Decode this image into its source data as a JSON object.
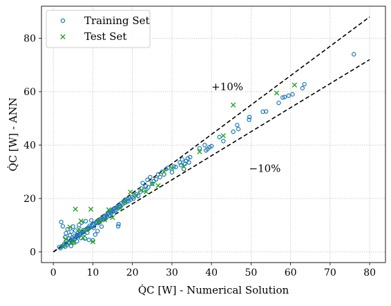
{
  "chart_data": {
    "type": "scatter",
    "xlim": [
      -3,
      84
    ],
    "ylim": [
      -4,
      92
    ],
    "xticks": [
      0,
      10,
      20,
      30,
      40,
      50,
      60,
      70,
      80
    ],
    "yticks": [
      0,
      20,
      40,
      60,
      80
    ],
    "xlabel": "Q̇C [W] - Numerical Solution",
    "ylabel": "Q̇C [W] - ANN",
    "grid": true,
    "legend_position": "top-left",
    "annotations": [
      {
        "text": "+10%",
        "x": 40,
        "y": 60.5
      },
      {
        "text": "−10%",
        "x": 49.5,
        "y": 30
      }
    ],
    "reference_lines": [
      {
        "name": "+10%",
        "slope": 1.1,
        "x": [
          0,
          80
        ],
        "style": "dashed",
        "color": "#000000"
      },
      {
        "name": "−10%",
        "slope": 0.9,
        "x": [
          0,
          80
        ],
        "style": "dashed",
        "color": "#000000"
      }
    ],
    "series": [
      {
        "name": "Training Set",
        "marker": "circle",
        "color": "#1f77b4",
        "points": [
          [
            1.5,
            1.8
          ],
          [
            1.8,
            1.4
          ],
          [
            2.0,
            11.2
          ],
          [
            2.2,
            2.1
          ],
          [
            2.4,
            9.6
          ],
          [
            2.6,
            2.4
          ],
          [
            2.8,
            3.0
          ],
          [
            3.0,
            5.5
          ],
          [
            3.0,
            2.0
          ],
          [
            3.2,
            7.0
          ],
          [
            3.4,
            4.0
          ],
          [
            3.5,
            2.6
          ],
          [
            3.6,
            8.5
          ],
          [
            3.8,
            3.3
          ],
          [
            4.0,
            5.0
          ],
          [
            4.0,
            3.6
          ],
          [
            4.2,
            6.2
          ],
          [
            4.4,
            4.4
          ],
          [
            4.5,
            2.2
          ],
          [
            4.6,
            7.6
          ],
          [
            4.8,
            5.3
          ],
          [
            5.0,
            4.6
          ],
          [
            5.0,
            9.5
          ],
          [
            5.2,
            3.5
          ],
          [
            5.4,
            6.0
          ],
          [
            5.5,
            4.9
          ],
          [
            5.6,
            8.0
          ],
          [
            5.8,
            5.6
          ],
          [
            6.0,
            6.3
          ],
          [
            6.0,
            4.0
          ],
          [
            6.2,
            7.0
          ],
          [
            6.4,
            5.8
          ],
          [
            6.5,
            10.1
          ],
          [
            6.6,
            6.6
          ],
          [
            6.8,
            7.4
          ],
          [
            7.0,
            6.9
          ],
          [
            7.0,
            5.2
          ],
          [
            7.2,
            11.0
          ],
          [
            7.4,
            7.6
          ],
          [
            7.6,
            8.2
          ],
          [
            7.8,
            6.7
          ],
          [
            8.0,
            8.0
          ],
          [
            8.0,
            5.0
          ],
          [
            8.2,
            11.5
          ],
          [
            8.4,
            8.6
          ],
          [
            8.6,
            7.2
          ],
          [
            8.8,
            9.0
          ],
          [
            9.0,
            8.8
          ],
          [
            9.0,
            4.5
          ],
          [
            9.2,
            9.8
          ],
          [
            9.4,
            9.3
          ],
          [
            9.6,
            11.8
          ],
          [
            9.8,
            9.6
          ],
          [
            10.0,
            10.2
          ],
          [
            10.0,
            4.3
          ],
          [
            10.2,
            9.0
          ],
          [
            10.4,
            10.6
          ],
          [
            10.6,
            6.5
          ],
          [
            10.8,
            11.0
          ],
          [
            11.0,
            10.8
          ],
          [
            11.2,
            7.8
          ],
          [
            11.4,
            11.6
          ],
          [
            11.6,
            11.2
          ],
          [
            11.8,
            12.2
          ],
          [
            12.0,
            12.0
          ],
          [
            12.2,
            9.5
          ],
          [
            12.4,
            12.6
          ],
          [
            12.6,
            12.3
          ],
          [
            12.8,
            13.1
          ],
          [
            13.0,
            13.3
          ],
          [
            13.2,
            12.6
          ],
          [
            13.4,
            13.8
          ],
          [
            13.6,
            13.2
          ],
          [
            13.8,
            14.2
          ],
          [
            14.0,
            14.5
          ],
          [
            14.2,
            13.7
          ],
          [
            14.4,
            15.0
          ],
          [
            14.6,
            14.5
          ],
          [
            14.8,
            15.4
          ],
          [
            15.0,
            15.0
          ],
          [
            15.2,
            16.0
          ],
          [
            15.4,
            15.3
          ],
          [
            15.6,
            16.4
          ],
          [
            15.8,
            15.6
          ],
          [
            16.0,
            16.5
          ],
          [
            16.2,
            17.0
          ],
          [
            16.4,
            9.6
          ],
          [
            16.5,
            10.4
          ],
          [
            16.6,
            16.8
          ],
          [
            16.8,
            17.4
          ],
          [
            17.0,
            17.0
          ],
          [
            17.2,
            18.2
          ],
          [
            17.5,
            17.8
          ],
          [
            17.8,
            19.0
          ],
          [
            18.0,
            18.4
          ],
          [
            18.2,
            19.6
          ],
          [
            18.5,
            18.8
          ],
          [
            18.8,
            19.8
          ],
          [
            19.0,
            19.0
          ],
          [
            19.3,
            20.2
          ],
          [
            19.6,
            19.6
          ],
          [
            20.0,
            20.5
          ],
          [
            20.3,
            20.0
          ],
          [
            20.6,
            21.2
          ],
          [
            21.0,
            21.6
          ],
          [
            21.5,
            21.0
          ],
          [
            22.0,
            22.5
          ],
          [
            22.3,
            23.8
          ],
          [
            22.6,
            25.8
          ],
          [
            23.0,
            23.2
          ],
          [
            23.4,
            24.6
          ],
          [
            23.8,
            27.0
          ],
          [
            24.0,
            24.2
          ],
          [
            24.5,
            28.0
          ],
          [
            25.0,
            25.5
          ],
          [
            25.4,
            26.5
          ],
          [
            26.0,
            27.2
          ],
          [
            26.5,
            29.0
          ],
          [
            27.0,
            28.0
          ],
          [
            27.5,
            30.0
          ],
          [
            28.0,
            29.0
          ],
          [
            28.5,
            31.0
          ],
          [
            29.0,
            31.5
          ],
          [
            30.0,
            29.8
          ],
          [
            30.5,
            32.0
          ],
          [
            31.0,
            31.8
          ],
          [
            32.0,
            33.5
          ],
          [
            32.3,
            32.5
          ],
          [
            32.6,
            34.6
          ],
          [
            33.0,
            31.0
          ],
          [
            33.3,
            33.0
          ],
          [
            33.6,
            34.0
          ],
          [
            34.0,
            35.0
          ],
          [
            34.3,
            33.5
          ],
          [
            34.6,
            35.5
          ],
          [
            37.0,
            38.8
          ],
          [
            38.3,
            40.0
          ],
          [
            38.6,
            38.0
          ],
          [
            39.0,
            38.5
          ],
          [
            39.5,
            39.2
          ],
          [
            40.0,
            39.6
          ],
          [
            42.0,
            43.0
          ],
          [
            43.0,
            41.5
          ],
          [
            45.5,
            45.0
          ],
          [
            46.5,
            47.5
          ],
          [
            46.8,
            46.0
          ],
          [
            49.5,
            49.5
          ],
          [
            49.6,
            50.5
          ],
          [
            53.0,
            52.5
          ],
          [
            53.8,
            52.6
          ],
          [
            57.0,
            55.8
          ],
          [
            58.0,
            57.8
          ],
          [
            58.5,
            58.0
          ],
          [
            59.5,
            58.5
          ],
          [
            60.5,
            59.0
          ],
          [
            63.0,
            61.3
          ],
          [
            63.5,
            62.8
          ],
          [
            76.0,
            74.0
          ]
        ]
      },
      {
        "name": "Test Set",
        "marker": "x",
        "color": "#2ca02c",
        "points": [
          [
            2.5,
            2.0
          ],
          [
            3.2,
            4.8
          ],
          [
            4.2,
            9.3
          ],
          [
            4.5,
            3.2
          ],
          [
            5.2,
            3.6
          ],
          [
            5.6,
            16.0
          ],
          [
            6.5,
            8.5
          ],
          [
            7.0,
            11.6
          ],
          [
            7.5,
            5.3
          ],
          [
            8.5,
            8.2
          ],
          [
            9.5,
            16.0
          ],
          [
            10.0,
            3.8
          ],
          [
            11.5,
            11.5
          ],
          [
            13.0,
            12.0
          ],
          [
            14.0,
            15.8
          ],
          [
            15.0,
            12.9
          ],
          [
            17.0,
            16.3
          ],
          [
            18.0,
            18.6
          ],
          [
            19.5,
            22.4
          ],
          [
            21.0,
            20.9
          ],
          [
            22.3,
            23.1
          ],
          [
            23.5,
            22.5
          ],
          [
            25.0,
            25.5
          ],
          [
            26.5,
            24.8
          ],
          [
            28.0,
            30.0
          ],
          [
            30.0,
            31.3
          ],
          [
            33.0,
            32.0
          ],
          [
            37.0,
            37.5
          ],
          [
            43.0,
            43.5
          ],
          [
            45.5,
            55.0
          ],
          [
            56.5,
            59.5
          ],
          [
            61.0,
            62.5
          ]
        ]
      }
    ]
  }
}
